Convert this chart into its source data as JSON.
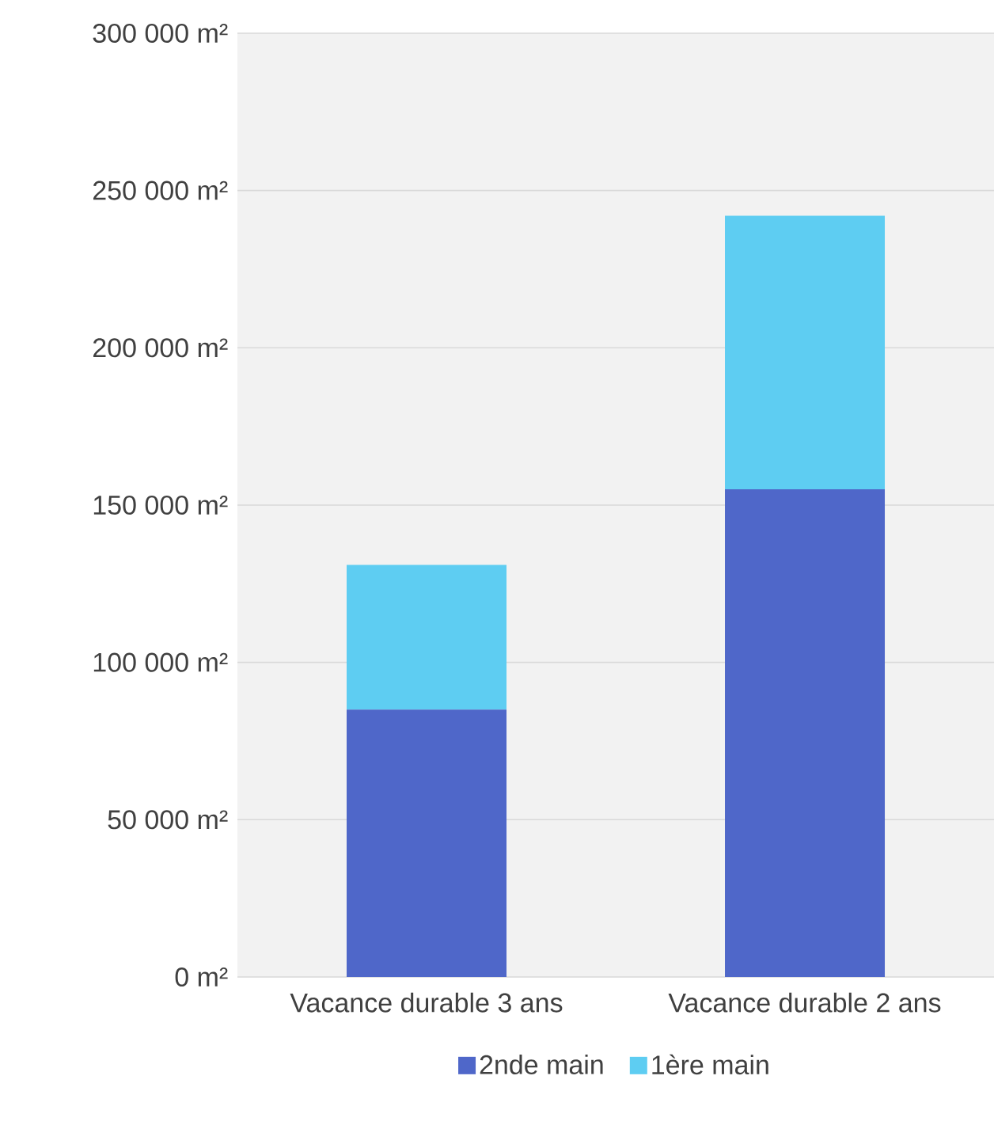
{
  "chart_data": {
    "type": "bar",
    "stacked": true,
    "categories": [
      "Vacance durable 3 ans",
      "Vacance durable 2 ans"
    ],
    "series": [
      {
        "name": "2nde main",
        "color": "#4f67c9",
        "values": [
          85000,
          155000
        ]
      },
      {
        "name": "1ère main",
        "color": "#5ecdf2",
        "values": [
          46000,
          87000
        ]
      }
    ],
    "ylim": [
      0,
      300000
    ],
    "yticks": [
      {
        "value": 0,
        "label": "0  m²"
      },
      {
        "value": 50000,
        "label": "50 000  m²"
      },
      {
        "value": 100000,
        "label": "100 000  m²"
      },
      {
        "value": 150000,
        "label": "150 000  m²"
      },
      {
        "value": 200000,
        "label": "200 000  m²"
      },
      {
        "value": 250000,
        "label": "250 000  m²"
      },
      {
        "value": 300000,
        "label": "300 000  m²"
      }
    ],
    "grid": "y",
    "legend": "bottom"
  }
}
